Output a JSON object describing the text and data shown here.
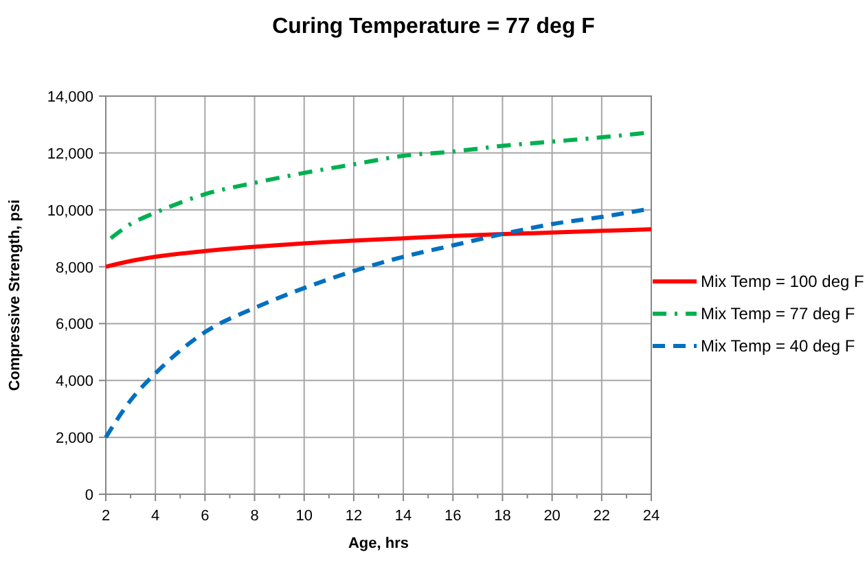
{
  "chart_data": {
    "type": "line",
    "title": "Curing Temperature = 77 deg F",
    "xlabel": "Age, hrs",
    "ylabel": "Compressive Strength, psi",
    "xlim": [
      2,
      24
    ],
    "xticks": [
      2,
      4,
      6,
      8,
      10,
      12,
      14,
      16,
      18,
      20,
      22,
      24
    ],
    "ylim": [
      0,
      14000
    ],
    "yticks": [
      {
        "value": 0,
        "label": "0"
      },
      {
        "value": 2000,
        "label": "2,000"
      },
      {
        "value": 4000,
        "label": "4,000"
      },
      {
        "value": 6000,
        "label": "6,000"
      },
      {
        "value": 8000,
        "label": "8,000"
      },
      {
        "value": 10000,
        "label": "10,000"
      },
      {
        "value": 12000,
        "label": "12,000"
      },
      {
        "value": 14000,
        "label": "14,000"
      }
    ],
    "grid": true,
    "legend": "right",
    "marker": "none",
    "series": [
      {
        "name": "Mix Temp = 100 deg F",
        "color": "#ff0000",
        "line_style": "solid",
        "x": [
          2,
          3,
          4,
          6,
          8,
          10,
          12,
          14,
          16,
          18,
          20,
          22,
          24
        ],
        "values": [
          8000,
          8200,
          8350,
          8550,
          8700,
          8820,
          8920,
          9000,
          9080,
          9150,
          9200,
          9260,
          9320
        ]
      },
      {
        "name": "Mix Temp = 77 deg F",
        "color": "#00b050",
        "line_style": "dashdot",
        "x": [
          2.2,
          3,
          4,
          6,
          8,
          10,
          12,
          14,
          16,
          18,
          20,
          22,
          23.7
        ],
        "values": [
          9000,
          9500,
          9900,
          10550,
          10950,
          11300,
          11600,
          11900,
          12050,
          12250,
          12400,
          12550,
          12700
        ]
      },
      {
        "name": "Mix Temp = 40 deg F",
        "color": "#0070c0",
        "line_style": "dashed",
        "x": [
          2,
          3,
          4,
          6,
          8,
          10,
          12,
          14,
          16,
          18,
          20,
          22,
          23.7
        ],
        "values": [
          2000,
          3300,
          4250,
          5700,
          6550,
          7250,
          7850,
          8350,
          8750,
          9150,
          9500,
          9750,
          10000
        ]
      }
    ]
  }
}
